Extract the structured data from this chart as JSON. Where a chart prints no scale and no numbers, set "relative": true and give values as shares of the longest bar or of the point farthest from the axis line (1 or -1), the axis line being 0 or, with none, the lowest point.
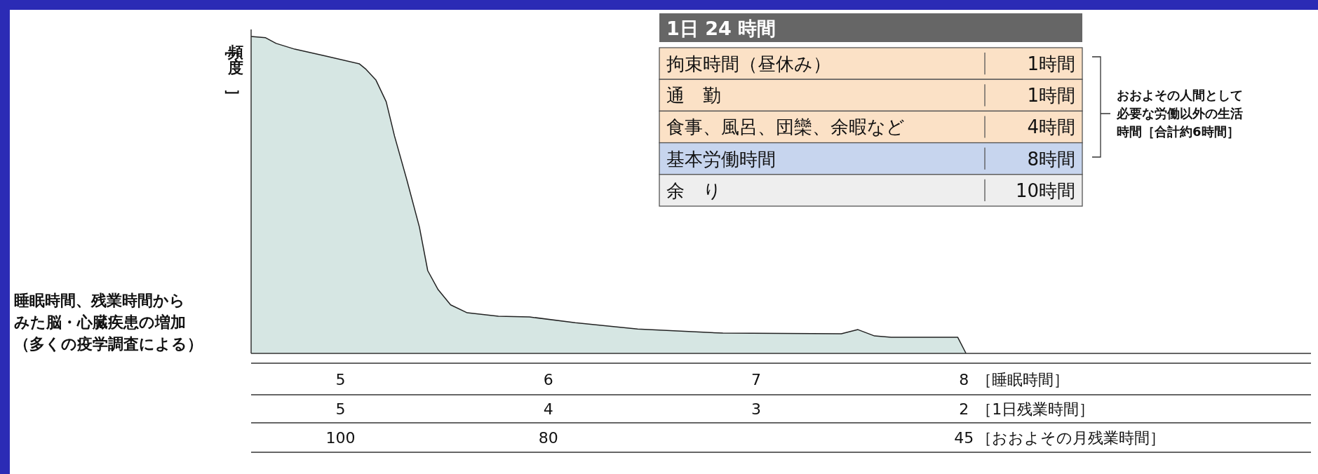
{
  "chart_data": [
    {
      "type": "area",
      "relative": true,
      "color": "#d6e6e3",
      "ylabel": "［頻度］",
      "xlabel": "［睡眠時間］",
      "x2label": "［1日残業時間］",
      "x": [
        4.57,
        4.64,
        4.69,
        4.78,
        4.93,
        5.09,
        5.12,
        5.17,
        5.22,
        5.26,
        5.32,
        5.38,
        5.42,
        5.47,
        5.53,
        5.61,
        5.76,
        5.91,
        6.13,
        6.43,
        6.84,
        7.41,
        7.49,
        7.57,
        7.65,
        7.97,
        8.01
      ],
      "values": [
        1.0,
        0.996,
        0.978,
        0.96,
        0.938,
        0.914,
        0.898,
        0.863,
        0.794,
        0.686,
        0.546,
        0.398,
        0.261,
        0.201,
        0.153,
        0.128,
        0.117,
        0.115,
        0.097,
        0.077,
        0.064,
        0.062,
        0.075,
        0.055,
        0.051,
        0.051,
        0.0
      ],
      "xlim": [
        4.57,
        9.67
      ],
      "xticks": [
        5,
        6,
        7,
        8
      ],
      "x2lim": [
        5.43,
        0.33
      ],
      "x2ticks": [
        5,
        4,
        3,
        2
      ],
      "annotations": [
        "睡眠時間、残業時間からみた脳・心臓疾患の増加（多くの疫学調査による）",
        "［おおよその月残業時間］",
        "100",
        "80",
        "45"
      ]
    },
    {
      "type": "other",
      "title": "1日 24 時間",
      "categories": [
        "拘束時間（昼休み）",
        "通　勤",
        "食事、風呂、団欒、余暇など",
        "基本労働時間",
        "余　り"
      ],
      "values": [
        1,
        1,
        4,
        8,
        10
      ],
      "value_labels": [
        "1時間",
        "1時間",
        "4時間",
        "8時間",
        "10時間"
      ],
      "colors": [
        "#fbe1c6",
        "#fbe1c6",
        "#fbe1c6",
        "#c7d5ee",
        "#eeeeee"
      ],
      "annotations": [
        "おおよその人間として必要な労働以外の生活時間［合計約6時間］"
      ]
    }
  ]
}
